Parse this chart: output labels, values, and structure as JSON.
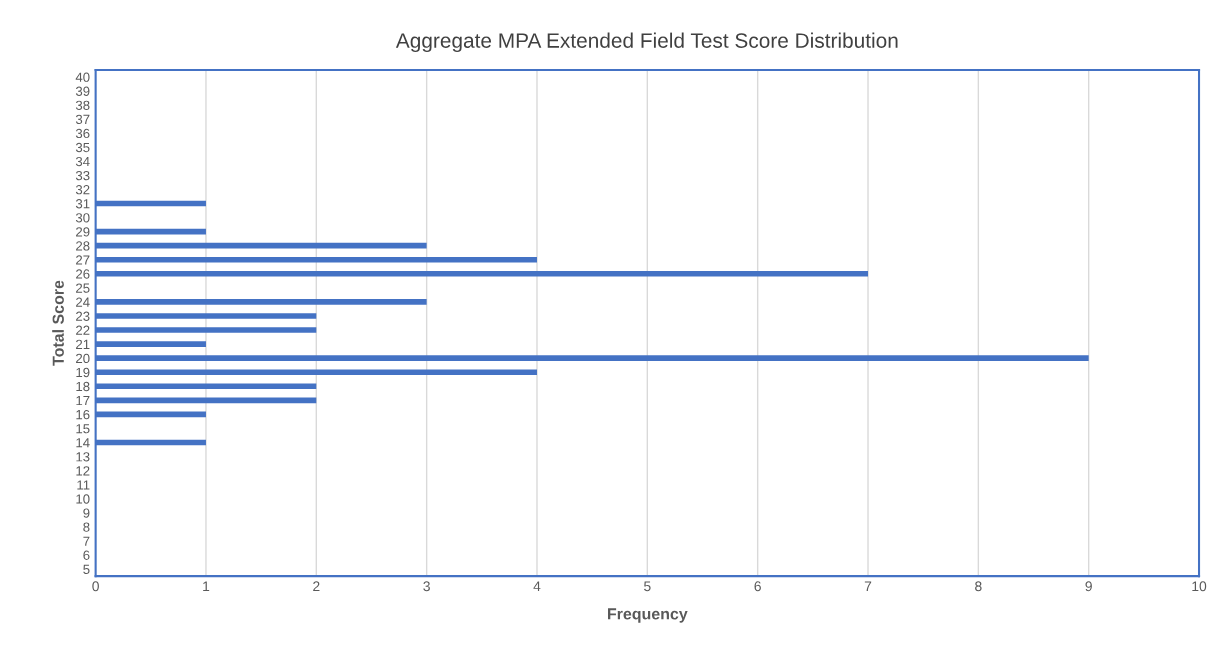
{
  "chart_data": {
    "type": "bar",
    "orientation": "horizontal",
    "title": "Aggregate MPA Extended Field Test Score Distribution",
    "xlabel": "Frequency",
    "ylabel": "Total Score",
    "categories": [
      "40",
      "39",
      "38",
      "37",
      "36",
      "35",
      "34",
      "33",
      "32",
      "31",
      "30",
      "29",
      "28",
      "27",
      "26",
      "25",
      "24",
      "23",
      "22",
      "21",
      "20",
      "19",
      "18",
      "17",
      "16",
      "15",
      "14",
      "13",
      "12",
      "11",
      "10",
      "9",
      "8",
      "7",
      "6",
      "5"
    ],
    "values": [
      0,
      0,
      0,
      0,
      0,
      0,
      0,
      0,
      0,
      1,
      0,
      1,
      3,
      4,
      7,
      0,
      3,
      2,
      2,
      1,
      9,
      4,
      2,
      2,
      1,
      0,
      1,
      0,
      0,
      0,
      0,
      0,
      0,
      0,
      0,
      0
    ],
    "color": "#4472c4",
    "xlim": [
      0,
      10
    ],
    "xticks": [
      0,
      1,
      2,
      3,
      4,
      5,
      6,
      7,
      8,
      9,
      10
    ],
    "grid": "x"
  }
}
